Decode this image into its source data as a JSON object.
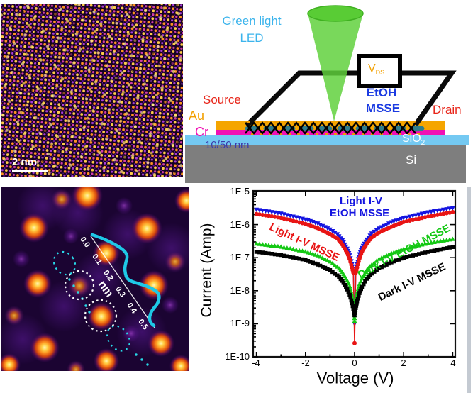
{
  "stem_panel": {
    "scale_bar": "2 nm"
  },
  "schematic": {
    "led_line1": "Green light",
    "led_line2": "LED",
    "vds_main": "V",
    "vds_sub": "DS",
    "etoh": "EtOH",
    "msse": "MSSE",
    "source": "Source",
    "drain": "Drain",
    "au": "Au",
    "cr": "Cr",
    "thickness": "10/50 nm",
    "sio2_main": "SiO",
    "sio2_sub": "2",
    "si": "Si",
    "colors": {
      "led_text": "#3CB4EC",
      "electrode_text": "#E8261A",
      "au": "#F5A500",
      "cr": "#F010B4",
      "thickness_text": "#3C3CAA",
      "etoh_text": "#1B3BE2",
      "sio2_layer": "#74C9F2",
      "si_layer": "#7E7E7E",
      "beam": "#5FD13C"
    }
  },
  "zoom_panel": {
    "ticks": [
      "0.0",
      "0.1",
      "0.2",
      "0.3",
      "0.4",
      "0.5"
    ],
    "unit": "nm"
  },
  "chart_data": {
    "type": "scatter",
    "title": "",
    "xlabel": "Voltage (V)",
    "ylabel": "Current (Amp)",
    "x_tick_labels": [
      "-4",
      "-2",
      "0",
      "2",
      "4"
    ],
    "x_tick_values": [
      -4,
      -2,
      0,
      2,
      4
    ],
    "x_minor_ticks": [
      -3,
      -1,
      1,
      3
    ],
    "y_tick_labels": [
      "1E-5",
      "1E-6",
      "1E-7",
      "1E-8",
      "1E-9",
      "1E-10"
    ],
    "y_tick_exponents": [
      -5,
      -6,
      -7,
      -8,
      -9,
      -10
    ],
    "xlim": [
      -4.1,
      4.1
    ],
    "ylog_lim": [
      -10,
      -5
    ],
    "grid": false,
    "legend_position": "annotations-on-plot",
    "annotations": {
      "blue_line1": "Light I-V",
      "blue_line2": "EtOH MSSE",
      "red": "Light I-V MSSE",
      "green": "Dark I-V EtOH MSSE",
      "black": "Dark I-V MSSE"
    },
    "series": [
      {
        "name": "Light I-V EtOH MSSE",
        "color": "#1414E0",
        "marker": "triangle-down",
        "points": [
          [
            -4,
            2.9e-06
          ],
          [
            -3,
            2.2e-06
          ],
          [
            -2,
            1.45e-06
          ],
          [
            -1.5,
            1.1e-06
          ],
          [
            -1,
            7.2e-07
          ],
          [
            -0.7,
            5.2e-07
          ],
          [
            -0.5,
            3.4e-07
          ],
          [
            -0.3,
            1.9e-07
          ],
          [
            -0.2,
            1.2e-07
          ],
          [
            -0.1,
            6.5e-08
          ],
          [
            -0.05,
            4e-08
          ],
          [
            0,
            1e-09
          ],
          [
            0.05,
            4e-08
          ],
          [
            0.1,
            6.5e-08
          ],
          [
            0.2,
            1.3e-07
          ],
          [
            0.3,
            2e-07
          ],
          [
            0.5,
            3.6e-07
          ],
          [
            0.7,
            5.5e-07
          ],
          [
            1,
            7.8e-07
          ],
          [
            1.5,
            1.2e-06
          ],
          [
            2,
            1.6e-06
          ],
          [
            3,
            2.4e-06
          ],
          [
            4,
            3.2e-06
          ]
        ]
      },
      {
        "name": "Light I-V MSSE",
        "color": "#E81414",
        "marker": "circle",
        "points": [
          [
            -4,
            2.1e-06
          ],
          [
            -3,
            1.6e-06
          ],
          [
            -2,
            1.05e-06
          ],
          [
            -1.5,
            7.8e-07
          ],
          [
            -1,
            5.2e-07
          ],
          [
            -0.7,
            3.8e-07
          ],
          [
            -0.5,
            2.5e-07
          ],
          [
            -0.3,
            1.4e-07
          ],
          [
            -0.2,
            9e-08
          ],
          [
            -0.1,
            5e-08
          ],
          [
            -0.05,
            3.5e-08
          ],
          [
            0,
            2.6e-10
          ],
          [
            0.05,
            3.5e-08
          ],
          [
            0.1,
            5e-08
          ],
          [
            0.2,
            9.5e-08
          ],
          [
            0.3,
            1.5e-07
          ],
          [
            0.5,
            2.7e-07
          ],
          [
            0.7,
            4.1e-07
          ],
          [
            1,
            5.8e-07
          ],
          [
            1.5,
            8.6e-07
          ],
          [
            2,
            1.2e-06
          ],
          [
            3,
            1.75e-06
          ],
          [
            4,
            2.4e-06
          ]
        ]
      },
      {
        "name": "Dark I-V EtOH MSSE",
        "color": "#14C814",
        "marker": "triangle-up",
        "points": [
          [
            -4,
            2.6e-07
          ],
          [
            -3,
            2.1e-07
          ],
          [
            -2,
            1.5e-07
          ],
          [
            -1.5,
            1.15e-07
          ],
          [
            -1,
            7.5e-08
          ],
          [
            -0.7,
            5.2e-08
          ],
          [
            -0.5,
            3.6e-08
          ],
          [
            -0.3,
            2e-08
          ],
          [
            -0.2,
            1.35e-08
          ],
          [
            -0.1,
            7e-09
          ],
          [
            -0.05,
            4.2e-09
          ],
          [
            0,
            1.2e-09
          ],
          [
            0.05,
            4.6e-09
          ],
          [
            0.1,
            8e-09
          ],
          [
            0.2,
            1.55e-08
          ],
          [
            0.3,
            2.3e-08
          ],
          [
            0.5,
            4.2e-08
          ],
          [
            0.7,
            6e-08
          ],
          [
            1,
            9e-08
          ],
          [
            1.5,
            1.35e-07
          ],
          [
            2,
            1.8e-07
          ],
          [
            3,
            2.7e-07
          ],
          [
            4,
            3.6e-07
          ]
        ]
      },
      {
        "name": "Dark I-V MSSE",
        "color": "#000000",
        "marker": "square",
        "points": [
          [
            -4,
            1.5e-07
          ],
          [
            -3,
            1.2e-07
          ],
          [
            -2,
            8.5e-08
          ],
          [
            -1.5,
            6.2e-08
          ],
          [
            -1,
            4.2e-08
          ],
          [
            -0.7,
            2.9e-08
          ],
          [
            -0.5,
            2e-08
          ],
          [
            -0.3,
            1.1e-08
          ],
          [
            -0.2,
            7.5e-09
          ],
          [
            -0.1,
            4.2e-09
          ],
          [
            -0.05,
            2.8e-09
          ],
          [
            0,
            1.8e-09
          ],
          [
            0.05,
            3e-09
          ],
          [
            0.1,
            4.8e-09
          ],
          [
            0.2,
            8.5e-09
          ],
          [
            0.3,
            1.3e-08
          ],
          [
            0.5,
            2.3e-08
          ],
          [
            0.7,
            3.3e-08
          ],
          [
            1,
            4.8e-08
          ],
          [
            1.5,
            7.2e-08
          ],
          [
            2,
            1e-07
          ],
          [
            3,
            1.5e-07
          ],
          [
            4,
            2.1e-07
          ]
        ]
      }
    ]
  }
}
